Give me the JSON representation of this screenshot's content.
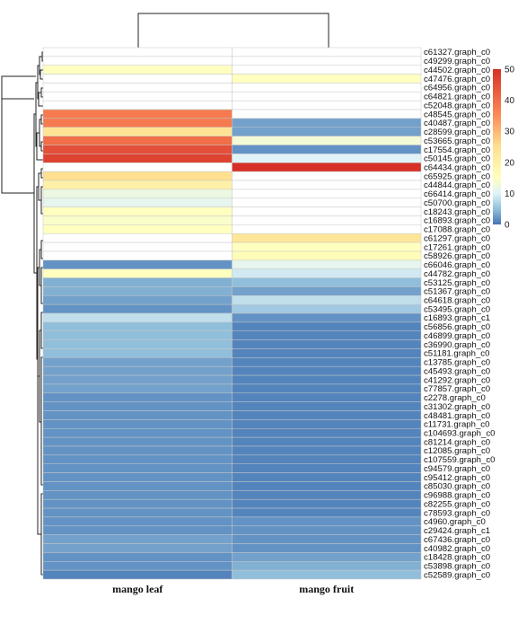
{
  "chart_data": {
    "type": "heatmap",
    "columns": [
      "mango leaf",
      "mango fruit"
    ],
    "rows": [
      {
        "gene": "c61327.graph_c0",
        "values": [
          0,
          0
        ]
      },
      {
        "gene": "c49299.graph_c0",
        "values": [
          0,
          0
        ]
      },
      {
        "gene": "c44502.graph_c0",
        "values": [
          15,
          0
        ]
      },
      {
        "gene": "c47476.graph_c0",
        "values": [
          0,
          15
        ]
      },
      {
        "gene": "c64956.graph_c0",
        "values": [
          0,
          0
        ]
      },
      {
        "gene": "c64821.graph_c0",
        "values": [
          0,
          0
        ]
      },
      {
        "gene": "c52048.graph_c0",
        "values": [
          0,
          0
        ]
      },
      {
        "gene": "c48545.graph_c0",
        "values": [
          38,
          0
        ]
      },
      {
        "gene": "c40487.graph_c0",
        "values": [
          38,
          3
        ]
      },
      {
        "gene": "c28599.graph_c0",
        "values": [
          24,
          3
        ]
      },
      {
        "gene": "c53665.graph_c0",
        "values": [
          40,
          13
        ]
      },
      {
        "gene": "c17554.graph_c0",
        "values": [
          45,
          2
        ]
      },
      {
        "gene": "c50145.graph_c0",
        "values": [
          47,
          10
        ]
      },
      {
        "gene": "c64434.graph_c0",
        "values": [
          0,
          50
        ]
      },
      {
        "gene": "c65925.graph_c0",
        "values": [
          25,
          0
        ]
      },
      {
        "gene": "c44844.graph_c0",
        "values": [
          20,
          0
        ]
      },
      {
        "gene": "c66414.graph_c0",
        "values": [
          12,
          0
        ]
      },
      {
        "gene": "c50700.graph_c0",
        "values": [
          11,
          0
        ]
      },
      {
        "gene": "c18243.graph_c0",
        "values": [
          15,
          0
        ]
      },
      {
        "gene": "c16893.graph_c0",
        "values": [
          14,
          0
        ]
      },
      {
        "gene": "c17088.graph_c0",
        "values": [
          15,
          0
        ]
      },
      {
        "gene": "c61297.graph_c0",
        "values": [
          0,
          23
        ]
      },
      {
        "gene": "c17261.graph_c0",
        "values": [
          0,
          15
        ]
      },
      {
        "gene": "c58926.graph_c0",
        "values": [
          0,
          16
        ]
      },
      {
        "gene": "c66046.graph_c0",
        "values": [
          2,
          11
        ]
      },
      {
        "gene": "c44782.graph_c0",
        "values": [
          15,
          9
        ]
      },
      {
        "gene": "c53125.graph_c0",
        "values": [
          4,
          5
        ]
      },
      {
        "gene": "c51367.graph_c0",
        "values": [
          4,
          3
        ]
      },
      {
        "gene": "c64618.graph_c0",
        "values": [
          3,
          8
        ]
      },
      {
        "gene": "c53495.graph_c0",
        "values": [
          2,
          6
        ]
      },
      {
        "gene": "c16893.graph_c1",
        "values": [
          8,
          2
        ]
      },
      {
        "gene": "c56856.graph_c0",
        "values": [
          5,
          1
        ]
      },
      {
        "gene": "c46899.graph_c0",
        "values": [
          5,
          1
        ]
      },
      {
        "gene": "c36990.graph_c0",
        "values": [
          5,
          1
        ]
      },
      {
        "gene": "c51181.graph_c0",
        "values": [
          5,
          1
        ]
      },
      {
        "gene": "c13785.graph_c0",
        "values": [
          3,
          1
        ]
      },
      {
        "gene": "c45493.graph_c0",
        "values": [
          3,
          1
        ]
      },
      {
        "gene": "c41292.graph_c0",
        "values": [
          3,
          1
        ]
      },
      {
        "gene": "c77857.graph_c0",
        "values": [
          3,
          1
        ]
      },
      {
        "gene": "c2278.graph_c0",
        "values": [
          2,
          1
        ]
      },
      {
        "gene": "c31302.graph_c0",
        "values": [
          2,
          1
        ]
      },
      {
        "gene": "c48481.graph_c0",
        "values": [
          2,
          1
        ]
      },
      {
        "gene": "c11731.graph_c0",
        "values": [
          2,
          1
        ]
      },
      {
        "gene": "c104693.graph_c0",
        "values": [
          2,
          1
        ]
      },
      {
        "gene": "c81214.graph_c0",
        "values": [
          2,
          1
        ]
      },
      {
        "gene": "c12085.graph_c0",
        "values": [
          2,
          1
        ]
      },
      {
        "gene": "c107559.graph_c0",
        "values": [
          2,
          1
        ]
      },
      {
        "gene": "c94579.graph_c0",
        "values": [
          2,
          1
        ]
      },
      {
        "gene": "c95412.graph_c0",
        "values": [
          2,
          1
        ]
      },
      {
        "gene": "c85030.graph_c0",
        "values": [
          2,
          1
        ]
      },
      {
        "gene": "c96988.graph_c0",
        "values": [
          2,
          1
        ]
      },
      {
        "gene": "c82255.graph_c0",
        "values": [
          2,
          1
        ]
      },
      {
        "gene": "c78593.graph_c0",
        "values": [
          2,
          1
        ]
      },
      {
        "gene": "c4960.graph_c0",
        "values": [
          2,
          2
        ]
      },
      {
        "gene": "c29424.graph_c1",
        "values": [
          2,
          2
        ]
      },
      {
        "gene": "c67436.graph_c0",
        "values": [
          3,
          2
        ]
      },
      {
        "gene": "c40982.graph_c0",
        "values": [
          3,
          2
        ]
      },
      {
        "gene": "c18428.graph_c0",
        "values": [
          2,
          3
        ]
      },
      {
        "gene": "c53898.graph_c0",
        "values": [
          2,
          4
        ]
      },
      {
        "gene": "c52589.graph_c0",
        "values": [
          1,
          5
        ]
      }
    ],
    "colorbar": {
      "ticks": [
        0,
        10,
        20,
        30,
        40,
        50
      ],
      "range": [
        0,
        50
      ],
      "stops": [
        {
          "value": 0,
          "color": "#4575b4"
        },
        {
          "value": 5,
          "color": "#91bfdb"
        },
        {
          "value": 10,
          "color": "#e0f3f8"
        },
        {
          "value": 15,
          "color": "#ffffbf"
        },
        {
          "value": 25,
          "color": "#fee090"
        },
        {
          "value": 35,
          "color": "#fc8d59"
        },
        {
          "value": 50,
          "color": "#d73027"
        }
      ],
      "zero_color": "#ffffff"
    },
    "legend": "right",
    "column_dendrogram": true,
    "row_dendrogram": true
  }
}
